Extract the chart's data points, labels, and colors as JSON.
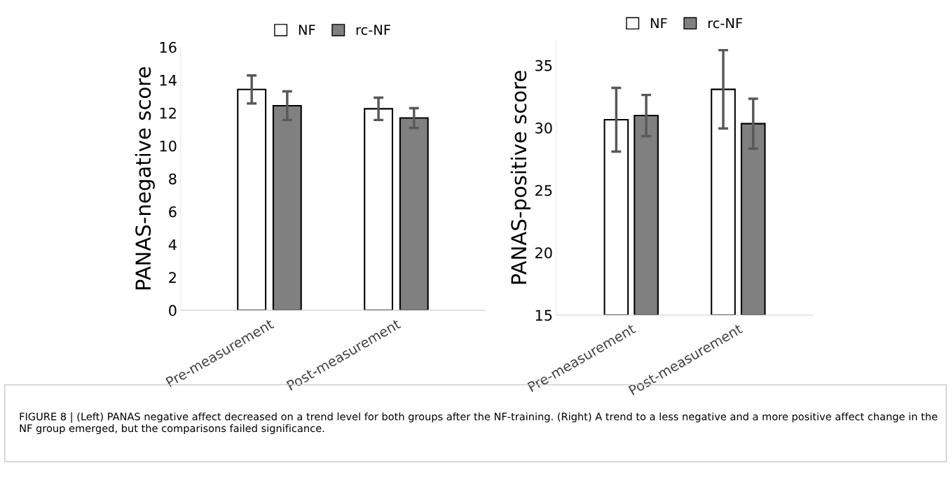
{
  "chart_data": [
    {
      "type": "bar",
      "categories": [
        "Pre-measurement",
        "Post-measurement"
      ],
      "ylabel": "PANAS-negative score",
      "ylim": [
        0,
        16
      ],
      "yticks": [
        0,
        2,
        4,
        6,
        8,
        10,
        12,
        14,
        16
      ],
      "legend": "top",
      "grid": false,
      "series": [
        {
          "name": "NF",
          "color": "#ffffff",
          "values": [
            13.43,
            12.25
          ],
          "errors": [
            0.85,
            0.68
          ]
        },
        {
          "name": "rc-NF",
          "color": "#808080",
          "values": [
            12.44,
            11.69
          ],
          "errors": [
            0.87,
            0.6
          ]
        }
      ]
    },
    {
      "type": "bar",
      "categories": [
        "Pre-measurement",
        "Post-measurement"
      ],
      "ylabel": "PANAS-positive score",
      "ylim": [
        15,
        37
      ],
      "yticks": [
        15,
        20,
        25,
        30,
        35
      ],
      "legend": "top",
      "grid": false,
      "series": [
        {
          "name": "NF",
          "color": "#ffffff",
          "values": [
            30.65,
            33.08
          ],
          "errors": [
            2.55,
            3.14
          ]
        },
        {
          "name": "rc-NF",
          "color": "#808080",
          "values": [
            30.98,
            30.33
          ],
          "errors": [
            1.65,
            2.0
          ]
        }
      ],
      "annotations": [
        "FIGURE 8 | (Left) PANAS negative affect decreased on a trend level for both groups after the NF-training. (Right) A trend to a less negative and a more positive affect change in the NF group emerged, but the comparisons failed significance."
      ]
    }
  ]
}
